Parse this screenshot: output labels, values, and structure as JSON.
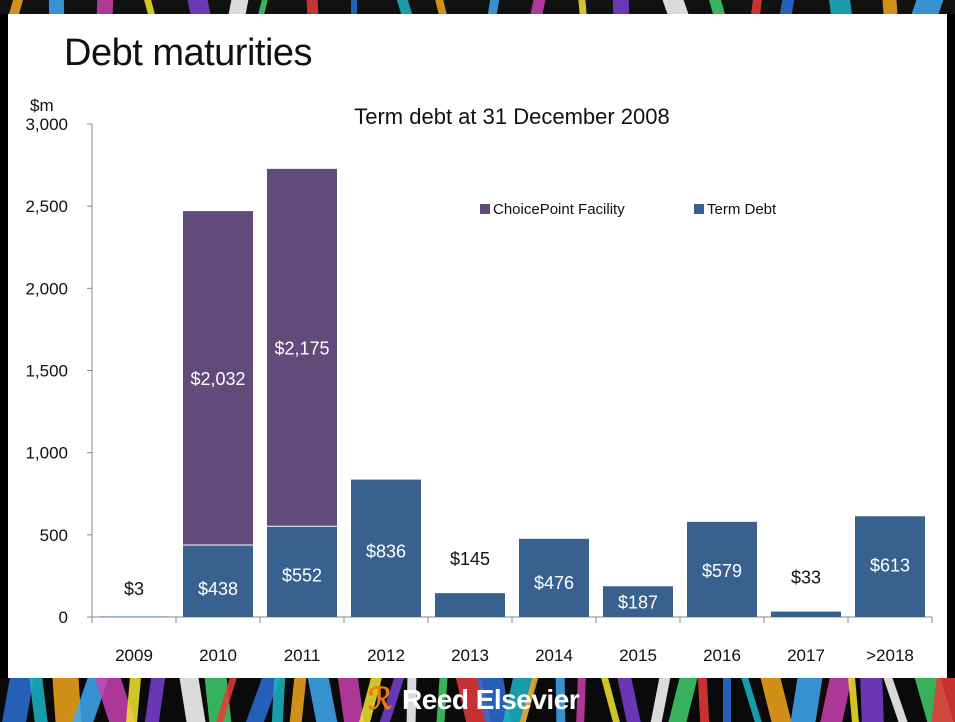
{
  "slide": {
    "title": "Debt maturities",
    "logo_text": "Reed Elsevier"
  },
  "chart_data": {
    "type": "bar",
    "stacked": true,
    "title": "Term debt at 31 December 2008",
    "ylabel": "$m",
    "xlabel": "",
    "ylim": [
      0,
      3000
    ],
    "yticks": [
      0,
      500,
      1000,
      1500,
      2000,
      2500,
      3000
    ],
    "ytick_labels": [
      "0",
      "500",
      "1,000",
      "1,500",
      "2,000",
      "2,500",
      "3,000"
    ],
    "categories": [
      "2009",
      "2010",
      "2011",
      "2012",
      "2013",
      "2014",
      "2015",
      "2016",
      "2017",
      ">2018"
    ],
    "series": [
      {
        "name": "Term Debt",
        "color": "#38618f",
        "values": [
          3,
          438,
          552,
          836,
          145,
          476,
          187,
          579,
          33,
          613
        ],
        "labels": [
          "$3",
          "$438",
          "$552",
          "$836",
          "$145",
          "$476",
          "$187",
          "$579",
          "$33",
          "$613"
        ]
      },
      {
        "name": "ChoicePoint Facility",
        "color": "#624a7b",
        "values": [
          0,
          2032,
          2175,
          0,
          0,
          0,
          0,
          0,
          0,
          0
        ],
        "labels": [
          "",
          "$2,032",
          "$2,175",
          "",
          "",
          "",
          "",
          "",
          "",
          ""
        ]
      }
    ],
    "legend": [
      "ChoicePoint Facility",
      "Term Debt"
    ],
    "legend_position": "top-right",
    "grid": false
  }
}
